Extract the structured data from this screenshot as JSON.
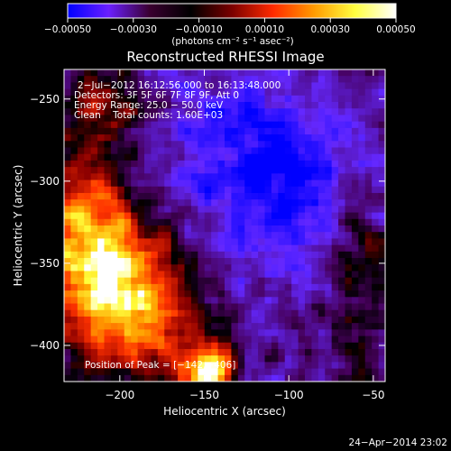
{
  "chart_data": {
    "type": "heatmap",
    "title": "Reconstructed RHESSI Image",
    "xlabel": "Heliocentric X (arcsec)",
    "ylabel": "Heliocentric Y (arcsec)",
    "xlim": [
      -233,
      -43
    ],
    "ylim": [
      -422,
      -232
    ],
    "x_ticks": [
      -200,
      -150,
      -100,
      -50
    ],
    "x_tick_labels": [
      "−200",
      "−150",
      "−100",
      "−50"
    ],
    "y_ticks": [
      -250,
      -300,
      -350,
      -400
    ],
    "y_tick_labels": [
      "−250",
      "−300",
      "−350",
      "−400"
    ],
    "colorbar": {
      "range": [
        -0.0005,
        0.0005
      ],
      "ticks": [
        -0.0005,
        -0.0003,
        -0.0001,
        0.0001,
        0.0003,
        0.0005
      ],
      "tick_labels": [
        "−0.00050",
        "−0.00030",
        "−0.00010",
        "0.00010",
        "0.00030",
        "0.00050"
      ],
      "unit_label": "(photons cm⁻² s⁻¹ asec⁻²)",
      "colors": [
        "#0000ff",
        "#6a1fff",
        "#3a0030",
        "#000000",
        "#7a0000",
        "#ff2a00",
        "#ff9a00",
        "#ffff40",
        "#ffffff"
      ]
    },
    "annotations": {
      "time_range": "2−Jul−2012 16:12:56.000 to 16:13:48.000",
      "detectors": "Detectors: 3F 5F 6F 7F 8F 9F, Att 0",
      "energy_range": "Energy Range: 25.0 − 50.0 keV",
      "clean_counts": "Clean    Total counts: 1.60E+03",
      "peak": "Position of Peak = [−142,−406]"
    },
    "peak": {
      "x": -142,
      "y": -406
    },
    "map_description_regions": [
      {
        "label": "bright",
        "x_range": [
          -233,
          -170
        ],
        "y_range": [
          -390,
          -290
        ]
      },
      {
        "label": "bright",
        "x_range": [
          -160,
          -140
        ],
        "y_range": [
          -422,
          -390
        ]
      },
      {
        "label": "negative",
        "x_range": [
          -130,
          -70
        ],
        "y_range": [
          -320,
          -240
        ]
      }
    ]
  },
  "footer": {
    "timestamp": "24−Apr−2014 23:02"
  }
}
